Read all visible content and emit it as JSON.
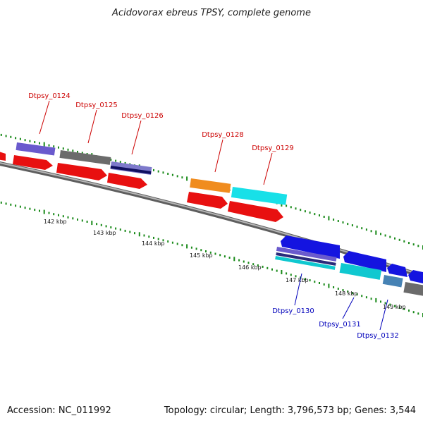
{
  "title": "Acidovorax ebreus TPSY, complete genome",
  "footer": {
    "accession": "Accession: NC_011992",
    "summary": "Topology: circular; Length: 3,796,573 bp; Genes: 3,544"
  },
  "colors": {
    "backbone": "#8a8a8a",
    "tick": "#1a8a1a",
    "label_top": "#cc0000",
    "label_bottom": "#0000bb"
  },
  "axis_labels": [
    "142 kbp",
    "143 kbp",
    "144 kbp",
    "145 kbp",
    "146 kbp",
    "147 kbp",
    "148 kbp",
    "149 kbp"
  ],
  "gene_labels": [
    "Dtpsy_0124",
    "Dtpsy_0125",
    "Dtpsy_0126",
    "Dtpsy_0128",
    "Dtpsy_0129",
    "Dtpsy_0130",
    "Dtpsy_0131",
    "Dtpsy_0132"
  ]
}
